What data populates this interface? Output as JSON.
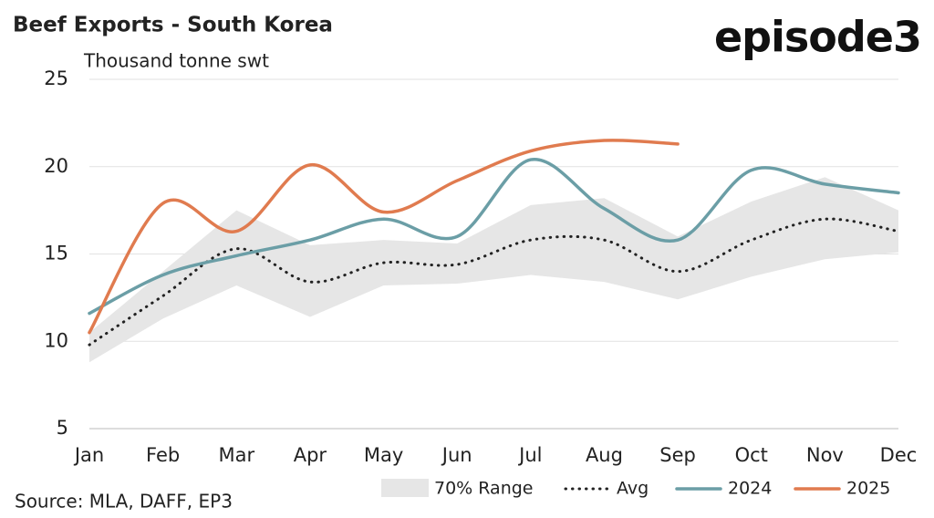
{
  "chart_data": {
    "type": "line",
    "title": "Beef Exports - South Korea",
    "subtitle": "Thousand tonne swt",
    "source": "Source: MLA, DAFF, EP3",
    "logo": "episode3",
    "categories": [
      "Jan",
      "Feb",
      "Mar",
      "Apr",
      "May",
      "Jun",
      "Jul",
      "Aug",
      "Sep",
      "Oct",
      "Nov",
      "Dec"
    ],
    "ylim": [
      5,
      25
    ],
    "yticks": [
      5,
      10,
      15,
      20,
      25
    ],
    "grid": true,
    "band": {
      "name": "70% Range",
      "color": "#e6e6e6",
      "lower": [
        8.8,
        11.3,
        13.2,
        11.4,
        13.2,
        13.3,
        13.8,
        13.4,
        12.4,
        13.7,
        14.7,
        15.1
      ],
      "upper": [
        10.5,
        14.0,
        17.5,
        15.5,
        15.8,
        15.6,
        17.8,
        18.2,
        16.0,
        18.0,
        19.4,
        17.5
      ]
    },
    "series": [
      {
        "name": "Avg",
        "color": "#222222",
        "dotted": true,
        "values": [
          9.8,
          12.6,
          15.3,
          13.4,
          14.5,
          14.4,
          15.8,
          15.8,
          14.0,
          15.8,
          17.0,
          16.3
        ]
      },
      {
        "name": "2024",
        "color": "#6b9ea6",
        "values": [
          11.6,
          13.8,
          14.9,
          15.8,
          17.0,
          16.0,
          20.4,
          17.6,
          15.8,
          19.8,
          19.0,
          18.5
        ]
      },
      {
        "name": "2025",
        "color": "#e07b4f",
        "values": [
          10.5,
          17.9,
          16.3,
          20.1,
          17.4,
          19.2,
          20.9,
          21.5,
          21.3,
          null,
          null,
          null
        ]
      }
    ]
  }
}
